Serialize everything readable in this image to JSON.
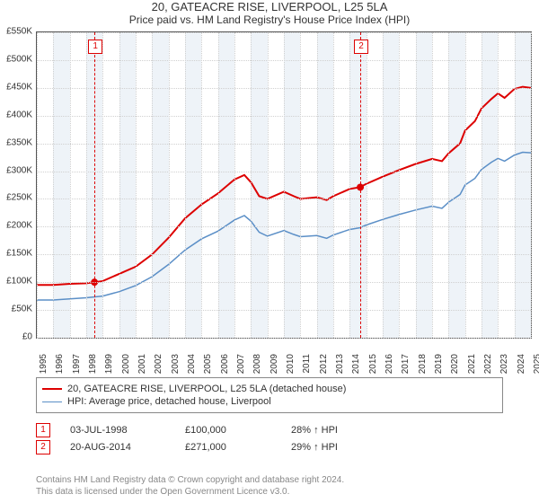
{
  "title": "20, GATEACRE RISE, LIVERPOOL, L25 5LA",
  "subtitle": "Price paid vs. HM Land Registry's House Price Index (HPI)",
  "chart": {
    "type": "line",
    "background_color": "#ffffff",
    "grid_color": "#d0d0d0",
    "band_color": "#eef3f8",
    "y": {
      "min": 0,
      "max": 550000,
      "step": 50000,
      "format_prefix": "£",
      "format_suffix": "K",
      "ticks": [
        "£0",
        "£50K",
        "£100K",
        "£150K",
        "£200K",
        "£250K",
        "£300K",
        "£350K",
        "£400K",
        "£450K",
        "£500K",
        "£550K"
      ]
    },
    "x": {
      "min": 1995,
      "max": 2025,
      "step": 1,
      "ticks": [
        "1995",
        "1996",
        "1997",
        "1998",
        "1999",
        "2000",
        "2001",
        "2002",
        "2003",
        "2004",
        "2005",
        "2006",
        "2007",
        "2008",
        "2009",
        "2010",
        "2011",
        "2012",
        "2013",
        "2014",
        "2015",
        "2016",
        "2017",
        "2018",
        "2019",
        "2020",
        "2021",
        "2022",
        "2023",
        "2024",
        "2025"
      ]
    },
    "bands_alternate_start": 1996,
    "series": [
      {
        "name": "20, GATEACRE RISE, LIVERPOOL, L25 5LA (detached house)",
        "color": "#dd0000",
        "line_width": 2,
        "points": [
          [
            1995,
            95000
          ],
          [
            1996,
            95000
          ],
          [
            1997,
            97000
          ],
          [
            1998,
            98000
          ],
          [
            1998.5,
            100000
          ],
          [
            1999,
            102000
          ],
          [
            2000,
            115000
          ],
          [
            2001,
            128000
          ],
          [
            2002,
            150000
          ],
          [
            2003,
            180000
          ],
          [
            2004,
            215000
          ],
          [
            2005,
            240000
          ],
          [
            2006,
            260000
          ],
          [
            2007,
            285000
          ],
          [
            2007.6,
            293000
          ],
          [
            2008,
            280000
          ],
          [
            2008.5,
            255000
          ],
          [
            2009,
            250000
          ],
          [
            2010,
            263000
          ],
          [
            2010.6,
            255000
          ],
          [
            2011,
            250000
          ],
          [
            2012,
            253000
          ],
          [
            2012.6,
            248000
          ],
          [
            2013,
            255000
          ],
          [
            2014,
            268000
          ],
          [
            2014.6,
            271000
          ],
          [
            2015,
            277000
          ],
          [
            2016,
            290000
          ],
          [
            2017,
            302000
          ],
          [
            2018,
            313000
          ],
          [
            2019,
            322000
          ],
          [
            2019.6,
            318000
          ],
          [
            2020,
            332000
          ],
          [
            2020.7,
            350000
          ],
          [
            2021,
            373000
          ],
          [
            2021.6,
            390000
          ],
          [
            2022,
            413000
          ],
          [
            2022.6,
            430000
          ],
          [
            2023,
            440000
          ],
          [
            2023.4,
            432000
          ],
          [
            2024,
            448000
          ],
          [
            2024.5,
            452000
          ],
          [
            2025,
            450000
          ]
        ]
      },
      {
        "name": "HPI: Average price, detached house, Liverpool",
        "color": "#5b8fc7",
        "line_width": 1.5,
        "points": [
          [
            1995,
            68000
          ],
          [
            1996,
            68000
          ],
          [
            1997,
            70000
          ],
          [
            1998,
            72000
          ],
          [
            1999,
            75000
          ],
          [
            2000,
            83000
          ],
          [
            2001,
            94000
          ],
          [
            2002,
            110000
          ],
          [
            2003,
            132000
          ],
          [
            2004,
            158000
          ],
          [
            2005,
            178000
          ],
          [
            2006,
            192000
          ],
          [
            2007,
            212000
          ],
          [
            2007.6,
            220000
          ],
          [
            2008,
            210000
          ],
          [
            2008.5,
            190000
          ],
          [
            2009,
            183000
          ],
          [
            2010,
            193000
          ],
          [
            2010.6,
            186000
          ],
          [
            2011,
            182000
          ],
          [
            2012,
            184000
          ],
          [
            2012.6,
            179000
          ],
          [
            2013,
            185000
          ],
          [
            2014,
            195000
          ],
          [
            2014.6,
            198000
          ],
          [
            2015,
            203000
          ],
          [
            2016,
            213000
          ],
          [
            2017,
            222000
          ],
          [
            2018,
            230000
          ],
          [
            2019,
            237000
          ],
          [
            2019.6,
            233000
          ],
          [
            2020,
            244000
          ],
          [
            2020.7,
            258000
          ],
          [
            2021,
            275000
          ],
          [
            2021.6,
            287000
          ],
          [
            2022,
            303000
          ],
          [
            2022.6,
            316000
          ],
          [
            2023,
            323000
          ],
          [
            2023.4,
            318000
          ],
          [
            2024,
            329000
          ],
          [
            2024.5,
            334000
          ],
          [
            2025,
            333000
          ]
        ]
      }
    ],
    "markers": [
      {
        "label": "1",
        "x": 1998.5,
        "y": 100000
      },
      {
        "label": "2",
        "x": 2014.64,
        "y": 271000
      }
    ],
    "marker_color": "#dd0000"
  },
  "legend_label_0": "20, GATEACRE RISE, LIVERPOOL, L25 5LA (detached house)",
  "legend_label_1": "HPI: Average price, detached house, Liverpool",
  "sales": [
    {
      "num": "1",
      "date": "03-JUL-1998",
      "price": "£100,000",
      "delta": "28% ↑ HPI"
    },
    {
      "num": "2",
      "date": "20-AUG-2014",
      "price": "£271,000",
      "delta": "29% ↑ HPI"
    }
  ],
  "footer_line1": "Contains HM Land Registry data © Crown copyright and database right 2024.",
  "footer_line2": "This data is licensed under the Open Government Licence v3.0."
}
